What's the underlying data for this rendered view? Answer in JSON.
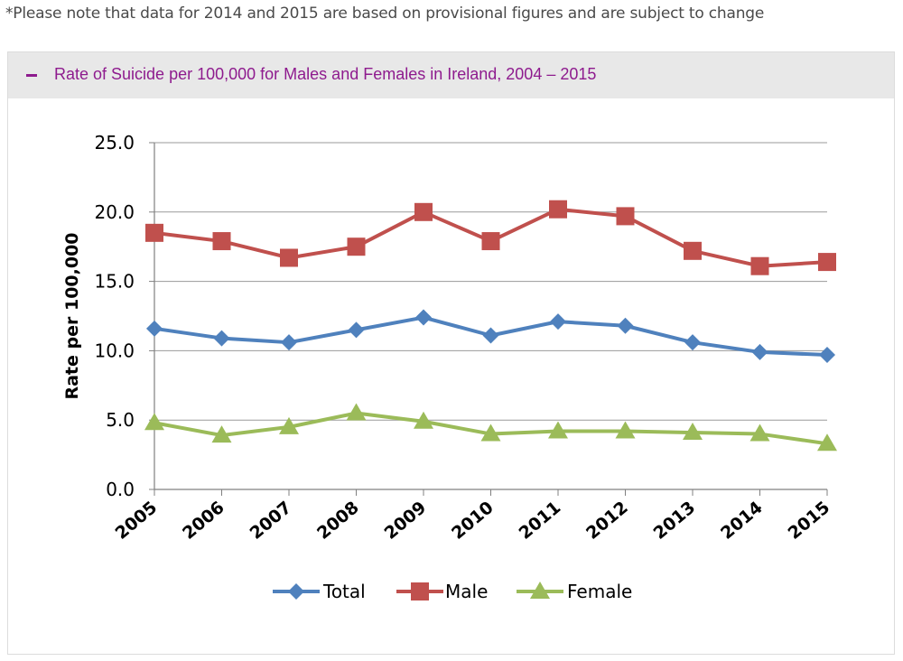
{
  "note": "*Please note that data for 2014 and 2015 are based on provisional figures and are subject to change",
  "panel": {
    "title": "Rate of Suicide per 100,000 for Males and Females in Ireland, 2004 – 2015",
    "collapse_icon": "minus-icon"
  },
  "chart_data": {
    "type": "line",
    "title": "",
    "xlabel": "",
    "ylabel": "Rate per 100,000",
    "categories": [
      "2005",
      "2006",
      "2007",
      "2008",
      "2009",
      "2010",
      "2011",
      "2012",
      "2013",
      "2014",
      "2015"
    ],
    "ylim": [
      0,
      25
    ],
    "yticks": [
      "0.0",
      "5.0",
      "10.0",
      "15.0",
      "20.0",
      "25.0"
    ],
    "grid": true,
    "legend": "bottom",
    "series": [
      {
        "name": "Total",
        "marker": "diamond",
        "color": "#4f81bd",
        "values": [
          11.6,
          10.9,
          10.6,
          11.5,
          12.4,
          11.1,
          12.1,
          11.8,
          10.6,
          9.9,
          9.7
        ]
      },
      {
        "name": "Male",
        "marker": "square",
        "color": "#c0504d",
        "values": [
          18.5,
          17.9,
          16.7,
          17.5,
          20.0,
          17.9,
          20.2,
          19.7,
          17.2,
          16.1,
          16.4
        ]
      },
      {
        "name": "Female",
        "marker": "triangle",
        "color": "#9bbb59",
        "values": [
          4.8,
          3.9,
          4.5,
          5.5,
          4.9,
          4.0,
          4.2,
          4.2,
          4.1,
          4.0,
          3.3
        ]
      }
    ]
  }
}
